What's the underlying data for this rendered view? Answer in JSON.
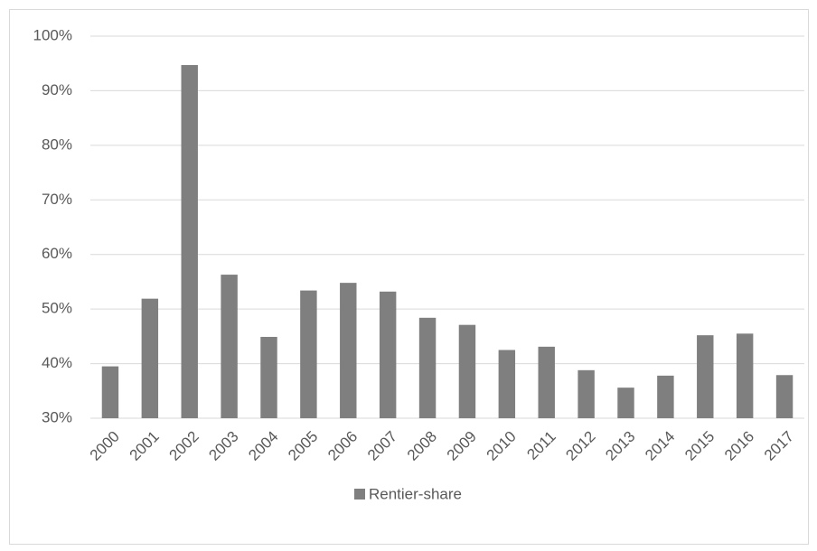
{
  "chart_data": {
    "type": "bar",
    "categories": [
      "2000",
      "2001",
      "2002",
      "2003",
      "2004",
      "2005",
      "2006",
      "2007",
      "2008",
      "2009",
      "2010",
      "2011",
      "2012",
      "2013",
      "2014",
      "2015",
      "2016",
      "2017"
    ],
    "series": [
      {
        "name": "Rentier-share",
        "color": "#7f7f7f",
        "values": [
          39.5,
          51.9,
          94.7,
          56.3,
          44.9,
          53.4,
          54.8,
          53.2,
          48.4,
          47.1,
          42.5,
          43.1,
          38.8,
          35.6,
          37.8,
          45.2,
          45.5,
          37.9
        ]
      }
    ],
    "ylim": [
      30,
      100
    ],
    "yticks": [
      {
        "value": 30,
        "label": "30%"
      },
      {
        "value": 40,
        "label": "40%"
      },
      {
        "value": 50,
        "label": "50%"
      },
      {
        "value": 60,
        "label": "60%"
      },
      {
        "value": 70,
        "label": "70%"
      },
      {
        "value": 80,
        "label": "80%"
      },
      {
        "value": 90,
        "label": "90%"
      },
      {
        "value": 100,
        "label": "100%"
      }
    ],
    "grid": true,
    "legend": "bottom"
  }
}
